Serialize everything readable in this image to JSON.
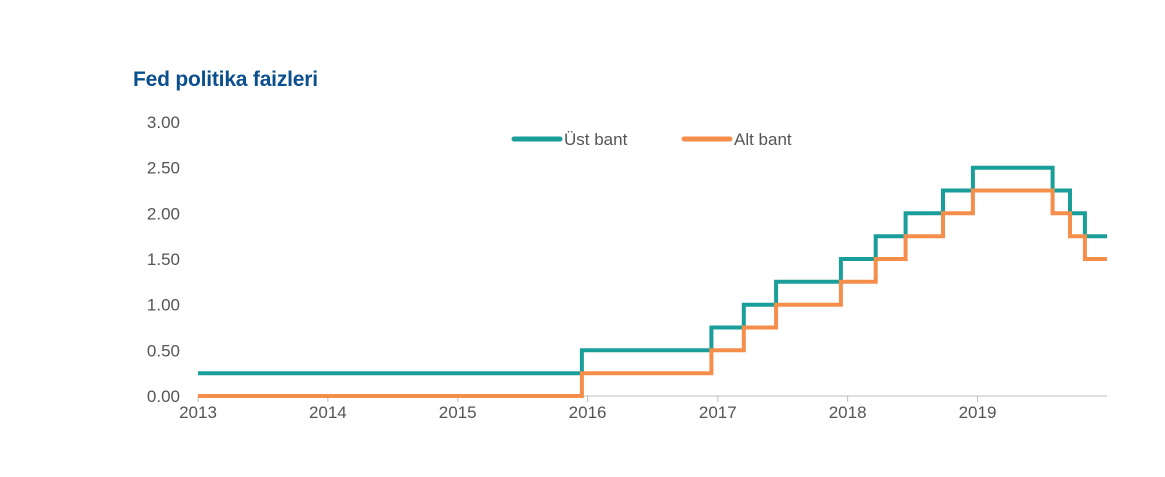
{
  "chart_data": {
    "type": "line",
    "title": "Fed politika faizleri",
    "xlabel": "",
    "ylabel": "",
    "x_ticks": [
      "2013",
      "2014",
      "2015",
      "2016",
      "2017",
      "2018",
      "2019"
    ],
    "y_ticks": [
      "0.00",
      "0.50",
      "1.00",
      "1.50",
      "2.00",
      "2.50",
      "3.00"
    ],
    "ylim": [
      0,
      3
    ],
    "xlim": [
      "2013-01-01",
      "2019-12-31"
    ],
    "legend_position": "top",
    "step": true,
    "series": [
      {
        "name": "Üst bant",
        "color": "#1a9e9a",
        "points": [
          [
            "2013-01-01",
            0.25
          ],
          [
            "2015-12-16",
            0.5
          ],
          [
            "2016-12-14",
            0.75
          ],
          [
            "2017-03-15",
            1.0
          ],
          [
            "2017-06-14",
            1.25
          ],
          [
            "2017-12-13",
            1.5
          ],
          [
            "2018-03-21",
            1.75
          ],
          [
            "2018-06-13",
            2.0
          ],
          [
            "2018-09-26",
            2.25
          ],
          [
            "2018-12-19",
            2.5
          ],
          [
            "2019-07-31",
            2.25
          ],
          [
            "2019-09-18",
            2.0
          ],
          [
            "2019-10-30",
            1.75
          ],
          [
            "2019-12-31",
            1.75
          ]
        ]
      },
      {
        "name": "Alt bant",
        "color": "#f58d4b",
        "points": [
          [
            "2013-01-01",
            0.0
          ],
          [
            "2015-12-16",
            0.25
          ],
          [
            "2016-12-14",
            0.5
          ],
          [
            "2017-03-15",
            0.75
          ],
          [
            "2017-06-14",
            1.0
          ],
          [
            "2017-12-13",
            1.25
          ],
          [
            "2018-03-21",
            1.5
          ],
          [
            "2018-06-13",
            1.75
          ],
          [
            "2018-09-26",
            2.0
          ],
          [
            "2018-12-19",
            2.25
          ],
          [
            "2019-07-31",
            2.0
          ],
          [
            "2019-09-18",
            1.75
          ],
          [
            "2019-10-30",
            1.5
          ],
          [
            "2019-12-31",
            1.5
          ]
        ]
      }
    ]
  }
}
